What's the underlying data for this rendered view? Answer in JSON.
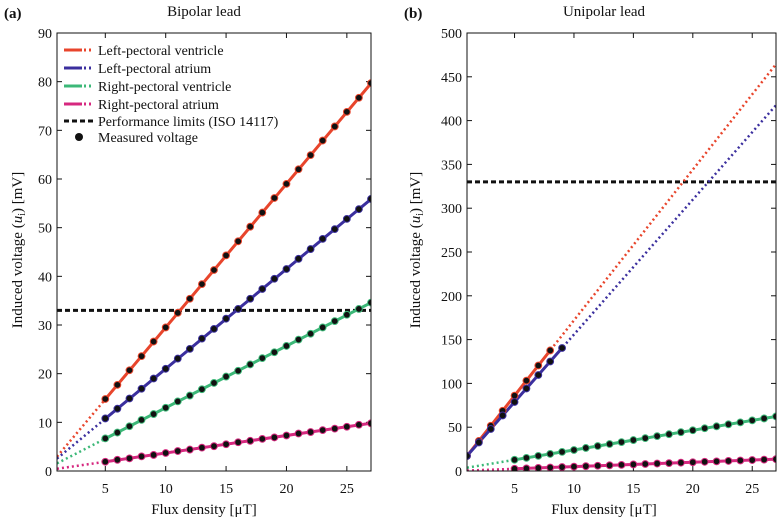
{
  "figure": {
    "panel_a": {
      "letter": "(a)",
      "title": "Bipolar lead"
    },
    "panel_b": {
      "letter": "(b)",
      "title": "Unipolar lead"
    }
  },
  "legend": [
    {
      "label": "Left-pectoral ventricle",
      "color": "#e8452c",
      "style": "line"
    },
    {
      "label": "Left-pectoral atrium",
      "color": "#3b2f9e",
      "style": "line"
    },
    {
      "label": "Right-pectoral ventricle",
      "color": "#3cb878",
      "style": "line"
    },
    {
      "label": "Right-pectoral atrium",
      "color": "#d6287f",
      "style": "line"
    },
    {
      "label": "Performance limits (ISO 14117)",
      "color": "#111111",
      "style": "dashed"
    },
    {
      "label": "Measured voltage",
      "color": "#111111",
      "style": "marker"
    }
  ],
  "chart_data": [
    {
      "type": "line",
      "title": "Bipolar lead",
      "panel": "(a)",
      "xlabel": "Flux density [μT]",
      "ylabel": "Induced voltage (u_i) [mV]",
      "ylabel_parts": {
        "before": "Induced voltage (",
        "var": "u",
        "sub": "i",
        "after": ") [mV]"
      },
      "xlim": [
        1,
        27
      ],
      "ylim": [
        0,
        90
      ],
      "xticks": [
        5,
        10,
        15,
        20,
        25
      ],
      "yticks": [
        0,
        10,
        20,
        30,
        40,
        50,
        60,
        70,
        80,
        90
      ],
      "limit_line": {
        "label": "Performance limits (ISO 14117)",
        "y": 33,
        "color": "#111111"
      },
      "series": [
        {
          "name": "Left-pectoral ventricle",
          "color": "#e8452c",
          "slope": 2.95,
          "intercept": 0,
          "fit_range": [
            5,
            27
          ],
          "x": [
            5,
            6,
            7,
            8,
            9,
            10,
            11,
            12,
            13,
            14,
            15,
            16,
            17,
            18,
            19,
            20,
            21,
            22,
            23,
            24,
            25,
            26,
            27
          ],
          "values": [
            14.8,
            17.7,
            20.7,
            23.6,
            26.6,
            29.5,
            32.5,
            35.4,
            38.4,
            41.3,
            44.3,
            47.2,
            50.2,
            53.1,
            56.1,
            59.0,
            62.0,
            64.9,
            67.9,
            70.8,
            73.8,
            76.7,
            79.7
          ]
        },
        {
          "name": "Left-pectoral atrium",
          "color": "#3b2f9e",
          "slope": 2.05,
          "intercept": 0.5,
          "fit_range": [
            5,
            27
          ],
          "x": [
            5,
            6,
            7,
            8,
            9,
            10,
            11,
            12,
            13,
            14,
            15,
            16,
            17,
            18,
            19,
            20,
            21,
            22,
            23,
            24,
            25,
            26,
            27
          ],
          "values": [
            10.8,
            12.8,
            14.9,
            16.9,
            19.0,
            21.0,
            23.1,
            25.1,
            27.2,
            29.2,
            31.3,
            33.3,
            35.4,
            37.4,
            39.5,
            41.5,
            43.6,
            45.6,
            47.7,
            49.7,
            51.8,
            53.8,
            55.9
          ]
        },
        {
          "name": "Right-pectoral ventricle",
          "color": "#3cb878",
          "slope": 1.27,
          "intercept": 0.3,
          "fit_range": [
            5,
            27
          ],
          "x": [
            5,
            6,
            7,
            8,
            9,
            10,
            11,
            12,
            13,
            14,
            15,
            16,
            17,
            18,
            19,
            20,
            21,
            22,
            23,
            24,
            25,
            26,
            27
          ],
          "values": [
            6.7,
            7.9,
            9.2,
            10.5,
            11.7,
            13.0,
            14.3,
            15.5,
            16.8,
            18.1,
            19.4,
            20.6,
            21.9,
            23.2,
            24.4,
            25.7,
            27.0,
            28.2,
            29.5,
            30.8,
            32.1,
            33.3,
            34.6
          ]
        },
        {
          "name": "Right-pectoral atrium",
          "color": "#d6287f",
          "slope": 0.36,
          "intercept": 0.1,
          "fit_range": [
            5,
            27
          ],
          "x": [
            5,
            6,
            7,
            8,
            9,
            10,
            11,
            12,
            13,
            14,
            15,
            16,
            17,
            18,
            19,
            20,
            21,
            22,
            23,
            24,
            25,
            26,
            27
          ],
          "values": [
            1.9,
            2.3,
            2.6,
            3.0,
            3.3,
            3.7,
            4.1,
            4.4,
            4.8,
            5.1,
            5.5,
            5.9,
            6.2,
            6.6,
            6.9,
            7.3,
            7.7,
            8.0,
            8.4,
            8.7,
            9.1,
            9.5,
            9.8
          ]
        }
      ]
    },
    {
      "type": "line",
      "title": "Unipolar lead",
      "panel": "(b)",
      "xlabel": "Flux density [μT]",
      "ylabel": "Induced voltage (u_i) [mV]",
      "ylabel_parts": {
        "before": "Induced voltage (",
        "var": "u",
        "sub": "i",
        "after": ") [mV]"
      },
      "xlim": [
        1,
        27
      ],
      "ylim": [
        0,
        500
      ],
      "xticks": [
        5,
        10,
        15,
        20,
        25
      ],
      "yticks": [
        0,
        50,
        100,
        150,
        200,
        250,
        300,
        350,
        400,
        450,
        500
      ],
      "limit_line": {
        "label": "Performance limits (ISO 14117)",
        "y": 330,
        "color": "#111111"
      },
      "series": [
        {
          "name": "Left-pectoral ventricle",
          "color": "#e8452c",
          "slope": 17.2,
          "intercept": 0,
          "fit_range": [
            1,
            8
          ],
          "x": [
            1,
            2,
            3,
            4,
            5,
            6,
            7,
            8
          ],
          "values": [
            17.2,
            34.4,
            51.6,
            68.8,
            86.0,
            103.2,
            120.4,
            137.6
          ]
        },
        {
          "name": "Left-pectoral atrium",
          "color": "#3b2f9e",
          "slope": 15.4,
          "intercept": 1.8,
          "fit_range": [
            1,
            9
          ],
          "x": [
            1,
            2,
            3,
            4,
            5,
            6,
            7,
            8,
            9
          ],
          "values": [
            17.2,
            32.6,
            48.0,
            63.4,
            78.8,
            94.2,
            109.6,
            125.0,
            140.4
          ]
        },
        {
          "name": "Right-pectoral ventricle",
          "color": "#3cb878",
          "slope": 2.25,
          "intercept": 1.5,
          "fit_range": [
            5,
            27
          ],
          "x": [
            5,
            6,
            7,
            8,
            9,
            10,
            11,
            12,
            13,
            14,
            15,
            16,
            17,
            18,
            19,
            20,
            21,
            22,
            23,
            24,
            25,
            26,
            27
          ],
          "values": [
            12.8,
            15.0,
            17.3,
            19.5,
            21.8,
            24.0,
            26.3,
            28.5,
            30.8,
            33.0,
            35.3,
            37.5,
            39.8,
            42.0,
            44.3,
            46.5,
            48.8,
            51.0,
            53.3,
            55.5,
            57.8,
            60.0,
            62.3
          ]
        },
        {
          "name": "Right-pectoral atrium",
          "color": "#d6287f",
          "slope": 0.5,
          "intercept": 0,
          "fit_range": [
            5,
            27
          ],
          "x": [
            5,
            6,
            7,
            8,
            9,
            10,
            11,
            12,
            13,
            14,
            15,
            16,
            17,
            18,
            19,
            20,
            21,
            22,
            23,
            24,
            25,
            26,
            27
          ],
          "values": [
            2.5,
            3.0,
            3.5,
            4.0,
            4.5,
            5.0,
            5.5,
            6.0,
            6.5,
            7.0,
            7.5,
            8.0,
            8.5,
            9.0,
            9.5,
            10.0,
            10.5,
            11.0,
            11.5,
            12.0,
            12.5,
            13.0,
            13.5
          ]
        }
      ]
    }
  ]
}
